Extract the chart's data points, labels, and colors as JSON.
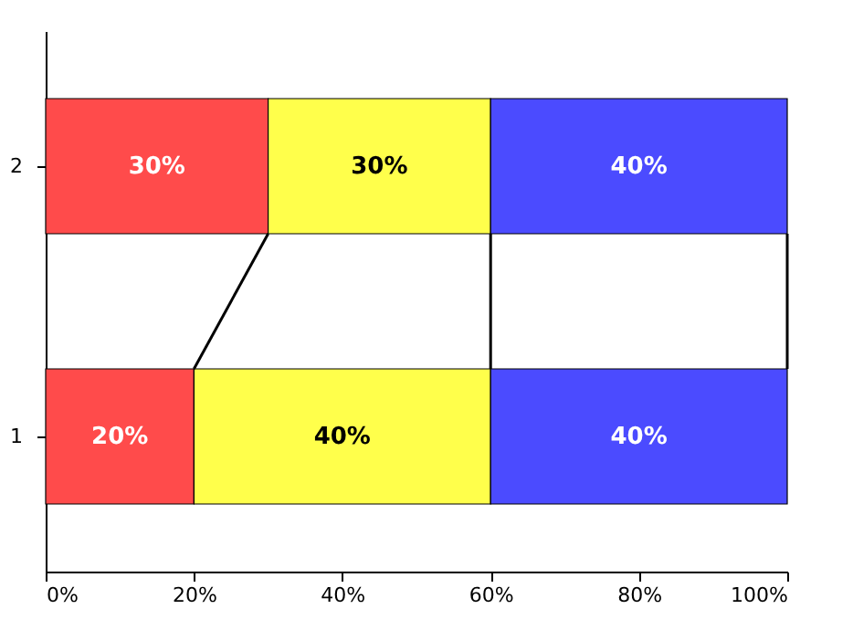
{
  "chart_data": {
    "type": "bar",
    "orientation": "horizontal",
    "stacked": true,
    "categories": [
      "2",
      "1"
    ],
    "series": [
      {
        "color": "#ff4b4b",
        "values": [
          30,
          20
        ],
        "value_labels": [
          "30%",
          "20%"
        ]
      },
      {
        "color": "#ffff4b",
        "values": [
          30,
          40
        ],
        "value_labels": [
          "30%",
          "40%"
        ]
      },
      {
        "color": "#4b4bff",
        "values": [
          40,
          40
        ],
        "value_labels": [
          "40%",
          "40%"
        ]
      }
    ],
    "xlim": [
      0,
      100
    ],
    "xticks": [
      {
        "value": 0,
        "label": "0%"
      },
      {
        "value": 20,
        "label": "20%"
      },
      {
        "value": 40,
        "label": "40%"
      },
      {
        "value": 60,
        "label": "60%"
      },
      {
        "value": 80,
        "label": "80%"
      },
      {
        "value": 100,
        "label": "100%"
      }
    ],
    "grid": false
  }
}
